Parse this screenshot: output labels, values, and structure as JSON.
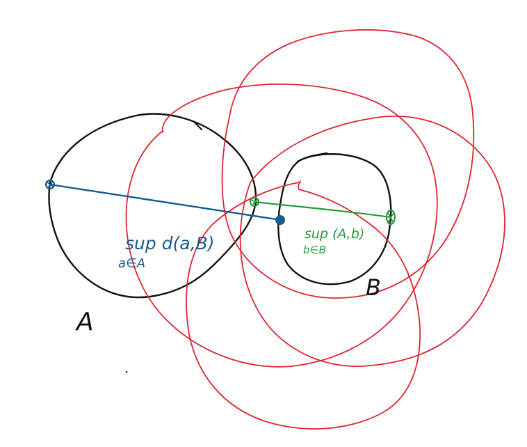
{
  "colors": {
    "black": "#111111",
    "red": "#e0242f",
    "blue": "#175b8f",
    "green": "#2a9a3c"
  },
  "labels": {
    "set_a": "A",
    "set_b": "B",
    "blue_sup": "sup d(a,B)",
    "blue_sub": "a∈A",
    "green_sup": "sup (A,b)",
    "green_sub": "b∈B"
  }
}
